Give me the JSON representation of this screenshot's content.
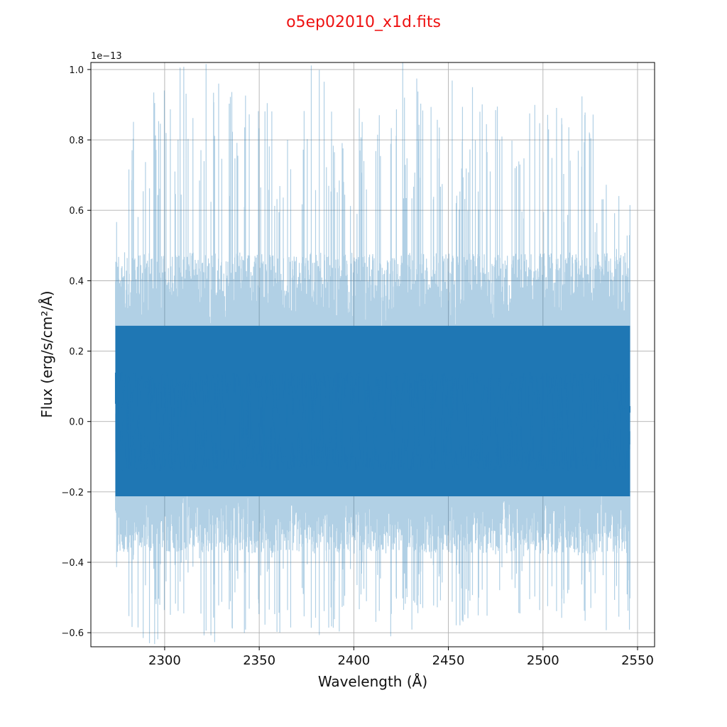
{
  "chart_data": {
    "type": "line",
    "title": "o5ep02010_x1d.fits",
    "xlabel": "Wavelength (Å)",
    "ylabel": "Flux (erg/s/cm²/Å)",
    "y_offset_label": "1e−13",
    "xlim": [
      2261,
      2559
    ],
    "ylim": [
      -0.64,
      1.02
    ],
    "y_scale_factor": "1e-13",
    "x_ticks": [
      2300,
      2350,
      2400,
      2450,
      2500,
      2550
    ],
    "x_tick_labels": [
      "2300",
      "2350",
      "2400",
      "2450",
      "2500",
      "2550"
    ],
    "y_ticks": [
      -0.6,
      -0.4,
      -0.2,
      0.0,
      0.2,
      0.4,
      0.6,
      0.8,
      1.0
    ],
    "y_tick_labels": [
      "−0.6",
      "−0.4",
      "−0.2",
      "0.0",
      "0.2",
      "0.4",
      "0.6",
      "0.8",
      "1.0"
    ],
    "grid": true,
    "series": [
      {
        "color": "#1f77b4",
        "x_range": [
          2274,
          2546
        ],
        "typical_band": [
          -0.25,
          0.32
        ],
        "envelope": [
          {
            "x": 2274,
            "low": -0.52,
            "high": 0.62
          },
          {
            "x": 2290,
            "low": -0.64,
            "high": 1.02
          },
          {
            "x": 2310,
            "low": -0.64,
            "high": 1.02
          },
          {
            "x": 2330,
            "low": -0.64,
            "high": 1.02
          },
          {
            "x": 2350,
            "low": -0.58,
            "high": 0.9
          },
          {
            "x": 2375,
            "low": -0.64,
            "high": 1.02
          },
          {
            "x": 2400,
            "low": -0.6,
            "high": 0.95
          },
          {
            "x": 2425,
            "low": -0.62,
            "high": 1.02
          },
          {
            "x": 2450,
            "low": -0.6,
            "high": 1.02
          },
          {
            "x": 2475,
            "low": -0.55,
            "high": 0.92
          },
          {
            "x": 2500,
            "low": -0.55,
            "high": 0.96
          },
          {
            "x": 2525,
            "low": -0.6,
            "high": 0.92
          },
          {
            "x": 2546,
            "low": -0.62,
            "high": 0.62
          }
        ]
      }
    ]
  }
}
